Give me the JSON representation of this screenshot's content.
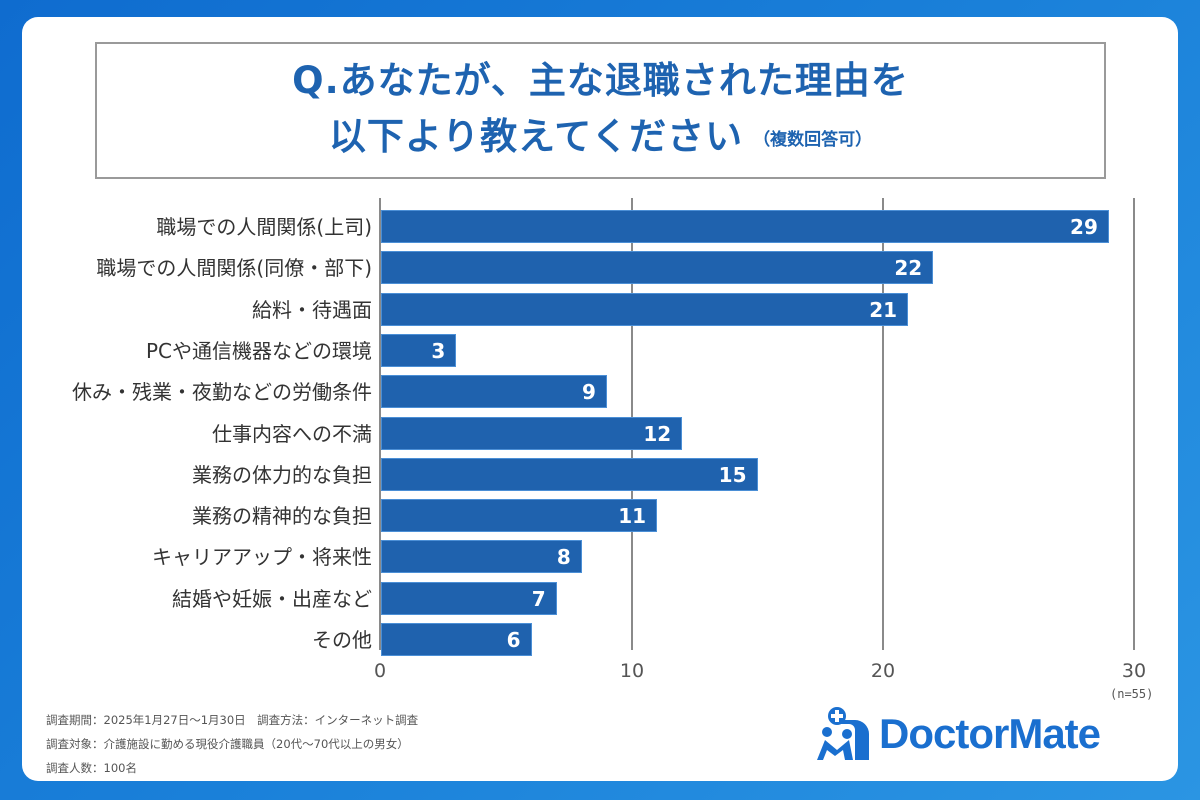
{
  "title": {
    "line1": "Q.あなたが、主な退職された理由を",
    "line2": "以下より教えてください",
    "note": "（複数回答可）"
  },
  "axis": {
    "ticks": [
      "0",
      "10",
      "20",
      "30"
    ],
    "sample_note": "(n=55)"
  },
  "footnotes": {
    "line1": "調査期間：2025年1月27日〜1月30日　調査方法：インターネット調査",
    "line2": "調査対象：介護施設に勤める現役介護職員（20代〜70代以上の男女）",
    "line3": "調査人数：100名"
  },
  "logo": {
    "text": "DoctorMate",
    "icon": "doctormate-logo-icon"
  },
  "colors": {
    "bar": "#1f62ae",
    "title": "#1e63b0",
    "background": "#1a80d9",
    "logo": "#1a6fcf"
  },
  "chart_data": {
    "type": "bar",
    "orientation": "horizontal",
    "title": "Q.あなたが、主な退職された理由を以下より教えてください（複数回答可）",
    "categories": [
      "職場での人間関係(上司)",
      "職場での人間関係(同僚・部下)",
      "給料・待遇面",
      "PCや通信機器などの環境",
      "休み・残業・夜勤などの労働条件",
      "仕事内容への不満",
      "業務の体力的な負担",
      "業務の精神的な負担",
      "キャリアアップ・将来性",
      "結婚や妊娠・出産など",
      "その他"
    ],
    "values": [
      29,
      22,
      21,
      3,
      9,
      12,
      15,
      11,
      8,
      7,
      6
    ],
    "xlabel": "",
    "ylabel": "",
    "xlim": [
      0,
      30
    ],
    "xticks": [
      0,
      10,
      20,
      30
    ],
    "grid": true,
    "data_labels": true,
    "n": 55
  }
}
